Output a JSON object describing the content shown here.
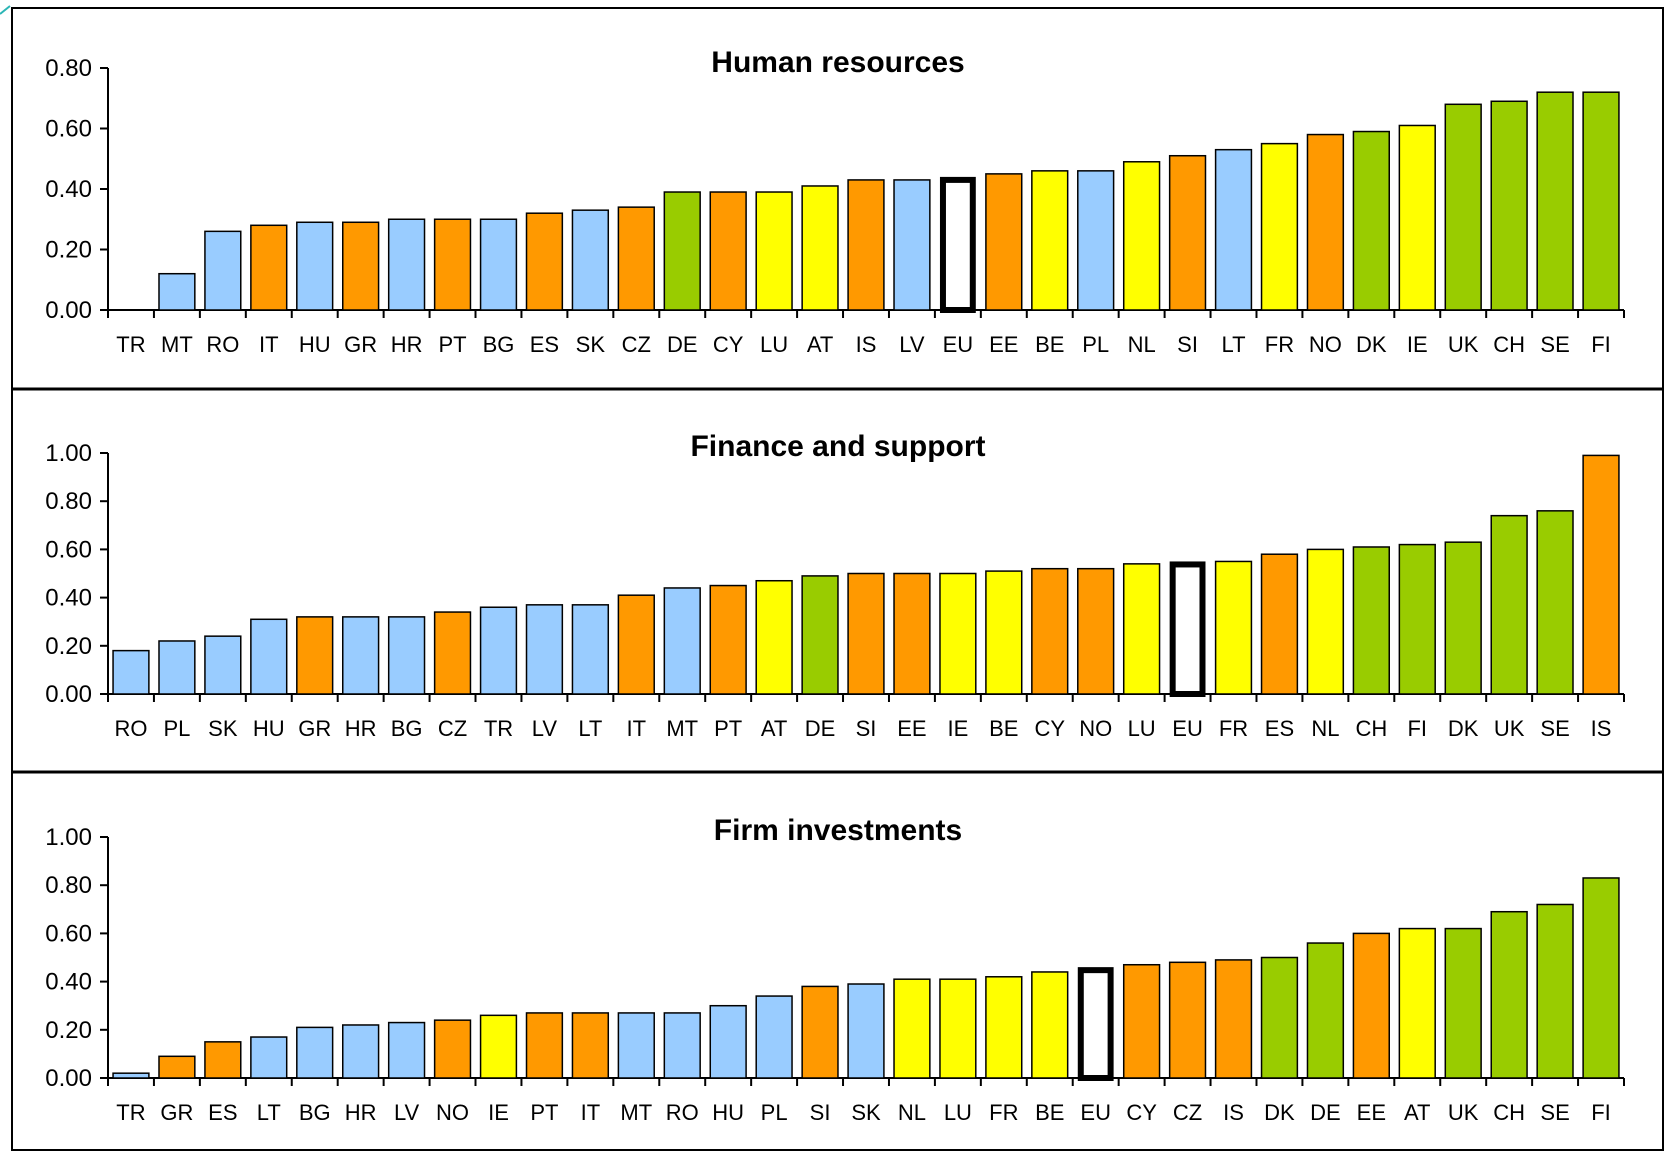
{
  "colors": {
    "blue": "#99ccff",
    "orange": "#ff9900",
    "yellow": "#ffff00",
    "green": "#99cc00",
    "eu": "#ffffff"
  },
  "chart_data": [
    {
      "type": "bar",
      "title": "Human resources",
      "xlabel": "",
      "ylabel": "",
      "ylim": [
        0,
        0.8
      ],
      "yticks": [
        "0.00",
        "0.20",
        "0.40",
        "0.60",
        "0.80"
      ],
      "grid": false,
      "legend": "none",
      "categories": [
        "TR",
        "MT",
        "RO",
        "IT",
        "HU",
        "GR",
        "HR",
        "PT",
        "BG",
        "ES",
        "SK",
        "CZ",
        "DE",
        "CY",
        "LU",
        "AT",
        "IS",
        "LV",
        "EU",
        "EE",
        "BE",
        "PL",
        "NL",
        "SI",
        "LT",
        "FR",
        "NO",
        "DK",
        "IE",
        "UK",
        "CH",
        "SE",
        "FI"
      ],
      "values": [
        0.0,
        0.12,
        0.26,
        0.28,
        0.29,
        0.29,
        0.3,
        0.3,
        0.3,
        0.32,
        0.33,
        0.34,
        0.39,
        0.39,
        0.39,
        0.41,
        0.43,
        0.43,
        0.44,
        0.45,
        0.46,
        0.46,
        0.49,
        0.51,
        0.53,
        0.55,
        0.58,
        0.59,
        0.61,
        0.68,
        0.69,
        0.72,
        0.72
      ],
      "colors": [
        "blue",
        "blue",
        "blue",
        "orange",
        "blue",
        "orange",
        "blue",
        "orange",
        "blue",
        "orange",
        "blue",
        "orange",
        "green",
        "orange",
        "yellow",
        "yellow",
        "orange",
        "blue",
        "eu",
        "orange",
        "yellow",
        "blue",
        "yellow",
        "orange",
        "blue",
        "yellow",
        "orange",
        "green",
        "yellow",
        "green",
        "green",
        "green",
        "green"
      ]
    },
    {
      "type": "bar",
      "title": "Finance and support",
      "xlabel": "",
      "ylabel": "",
      "ylim": [
        0,
        1.0
      ],
      "yticks": [
        "0.00",
        "0.20",
        "0.40",
        "0.60",
        "0.80",
        "1.00"
      ],
      "grid": false,
      "legend": "none",
      "categories": [
        "RO",
        "PL",
        "SK",
        "HU",
        "GR",
        "HR",
        "BG",
        "CZ",
        "TR",
        "LV",
        "LT",
        "IT",
        "MT",
        "PT",
        "AT",
        "DE",
        "SI",
        "EE",
        "IE",
        "BE",
        "CY",
        "NO",
        "LU",
        "EU",
        "FR",
        "ES",
        "NL",
        "CH",
        "FI",
        "DK",
        "UK",
        "SE",
        "IS"
      ],
      "values": [
        0.18,
        0.22,
        0.24,
        0.31,
        0.32,
        0.32,
        0.32,
        0.34,
        0.36,
        0.37,
        0.37,
        0.41,
        0.44,
        0.45,
        0.47,
        0.49,
        0.5,
        0.5,
        0.5,
        0.51,
        0.52,
        0.52,
        0.54,
        0.55,
        0.55,
        0.58,
        0.6,
        0.61,
        0.62,
        0.63,
        0.74,
        0.76,
        0.99
      ],
      "colors": [
        "blue",
        "blue",
        "blue",
        "blue",
        "orange",
        "blue",
        "blue",
        "orange",
        "blue",
        "blue",
        "blue",
        "orange",
        "blue",
        "orange",
        "yellow",
        "green",
        "orange",
        "orange",
        "yellow",
        "yellow",
        "orange",
        "orange",
        "yellow",
        "eu",
        "yellow",
        "orange",
        "yellow",
        "green",
        "green",
        "green",
        "green",
        "green",
        "orange"
      ]
    },
    {
      "type": "bar",
      "title": "Firm investments",
      "xlabel": "",
      "ylabel": "",
      "ylim": [
        0,
        1.0
      ],
      "yticks": [
        "0.00",
        "0.20",
        "0.40",
        "0.60",
        "0.80",
        "1.00"
      ],
      "grid": false,
      "legend": "none",
      "categories": [
        "TR",
        "GR",
        "ES",
        "LT",
        "BG",
        "HR",
        "LV",
        "NO",
        "IE",
        "PT",
        "IT",
        "MT",
        "RO",
        "HU",
        "PL",
        "SI",
        "SK",
        "NL",
        "LU",
        "FR",
        "BE",
        "EU",
        "CY",
        "CZ",
        "IS",
        "DK",
        "DE",
        "EE",
        "AT",
        "UK",
        "CH",
        "SE",
        "FI"
      ],
      "values": [
        0.02,
        0.09,
        0.15,
        0.17,
        0.21,
        0.22,
        0.23,
        0.24,
        0.26,
        0.27,
        0.27,
        0.27,
        0.27,
        0.3,
        0.34,
        0.38,
        0.39,
        0.41,
        0.41,
        0.42,
        0.44,
        0.46,
        0.47,
        0.48,
        0.49,
        0.5,
        0.56,
        0.6,
        0.62,
        0.62,
        0.69,
        0.72,
        0.83
      ],
      "colors": [
        "blue",
        "orange",
        "orange",
        "blue",
        "blue",
        "blue",
        "blue",
        "orange",
        "yellow",
        "orange",
        "orange",
        "blue",
        "blue",
        "blue",
        "blue",
        "orange",
        "blue",
        "yellow",
        "yellow",
        "yellow",
        "yellow",
        "eu",
        "orange",
        "orange",
        "orange",
        "green",
        "green",
        "orange",
        "yellow",
        "green",
        "green",
        "green",
        "green"
      ]
    }
  ]
}
